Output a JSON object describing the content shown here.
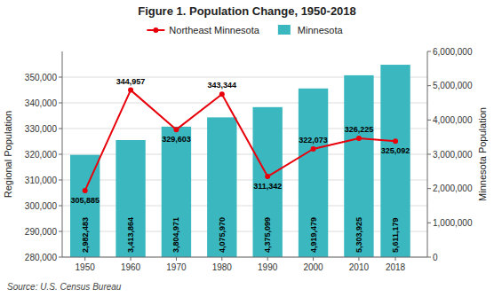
{
  "chart_data": {
    "type": "bar",
    "title": "Figure 1. Population Change, 1950-2018",
    "x": [
      1950,
      1960,
      1970,
      1980,
      1990,
      2000,
      2010,
      2018
    ],
    "xlim": [
      1945,
      2025
    ],
    "xticks": [
      1950,
      1960,
      1970,
      1980,
      1990,
      2000,
      2010,
      2018
    ],
    "ylabel": "Regional Population",
    "y2label": "Minnesota Population",
    "ylim": [
      280000,
      360000
    ],
    "yticks": [
      {
        "value": 280000,
        "label": "280,000"
      },
      {
        "value": 290000,
        "label": "290,000"
      },
      {
        "value": 300000,
        "label": "300,000"
      },
      {
        "value": 310000,
        "label": "310,000"
      },
      {
        "value": 320000,
        "label": "320,000"
      },
      {
        "value": 330000,
        "label": "330,000"
      },
      {
        "value": 340000,
        "label": "340,000"
      },
      {
        "value": 350000,
        "label": "350,000"
      }
    ],
    "y2lim": [
      0,
      6000000
    ],
    "y2ticks": [
      0,
      {
        "value": 1000000,
        "label": "1,000,000"
      },
      {
        "value": 2000000,
        "label": "2,000,000"
      },
      {
        "value": 3000000,
        "label": "3,000,000"
      },
      {
        "value": 4000000,
        "label": "4,000,000"
      },
      {
        "value": 5000000,
        "label": "5,000,000"
      },
      {
        "value": 6000000,
        "label": "6,000,000"
      }
    ],
    "grid": true,
    "legend": "top",
    "source": "Source: U.S. Census Bureau",
    "series": [
      {
        "name": "Northeast Minnesota",
        "type": "line",
        "color": "#E8000B",
        "marker": "circle",
        "data_labels": true,
        "values": [
          305885,
          344957,
          329603,
          343344,
          311342,
          322073,
          326225,
          325092
        ],
        "value_labels": [
          "305,885",
          "344,957",
          "329,603",
          "343,344",
          "311,342",
          "322,073",
          "326,225",
          "325,092"
        ]
      },
      {
        "name": "Minnesota",
        "type": "bar",
        "color": "#3BB8BF",
        "axis": "y2",
        "data_labels": true,
        "values": [
          2982483,
          3413864,
          3804971,
          4075970,
          4375099,
          4919479,
          5303925,
          5611179
        ],
        "value_labels": [
          "2,982,483",
          "3,413,864",
          "3,804,971",
          "4,075,970",
          "4,375,099",
          "4,919,479",
          "5,303,925",
          "5,611,179"
        ]
      }
    ]
  }
}
